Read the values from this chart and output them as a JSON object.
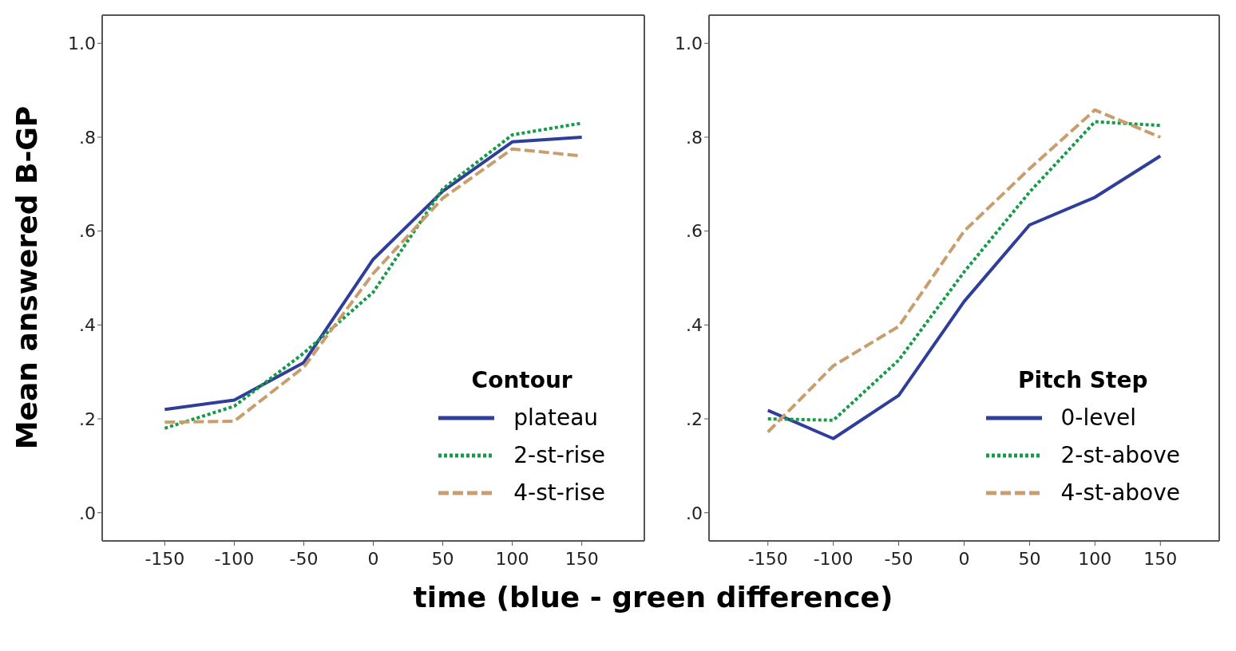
{
  "chart_data": [
    {
      "type": "line",
      "ylabel": "Mean answered B-GP",
      "xlabel": "time (blue - green difference)",
      "legend_title": "Contour",
      "legend": "bottom right",
      "x": [
        -150,
        -100,
        -50,
        0,
        50,
        100,
        150
      ],
      "series": [
        {
          "name": "plateau",
          "color": "#2e3e9a",
          "line_style": "solid",
          "values": [
            0.22,
            0.24,
            0.32,
            0.54,
            0.685,
            0.79,
            0.8
          ]
        },
        {
          "name": "2-st-rise",
          "color": "#169c48",
          "line_style": "dotted",
          "values": [
            0.18,
            0.227,
            0.34,
            0.47,
            0.69,
            0.805,
            0.83
          ]
        },
        {
          "name": "4-st-rise",
          "color": "#c89e6c",
          "line_style": "dashed",
          "values": [
            0.193,
            0.195,
            0.31,
            0.51,
            0.67,
            0.775,
            0.76
          ]
        }
      ],
      "xlim": [
        -195,
        195
      ],
      "xticks": [
        -150,
        -100,
        -50,
        0,
        50,
        100,
        150
      ],
      "ylim": [
        -0.06,
        1.06
      ],
      "yticks": [
        {
          "value": 0,
          "label": ".0"
        },
        {
          "value": 0.2,
          "label": ".2"
        },
        {
          "value": 0.4,
          "label": ".4"
        },
        {
          "value": 0.6,
          "label": ".6"
        },
        {
          "value": 0.8,
          "label": ".8"
        },
        {
          "value": 1,
          "label": "1.0"
        }
      ]
    },
    {
      "type": "line",
      "legend_title": "Pitch Step",
      "legend": "bottom right",
      "x": [
        -150,
        -100,
        -50,
        0,
        50,
        100,
        150
      ],
      "series": [
        {
          "name": "0-level",
          "color": "#2e3e9a",
          "line_style": "solid",
          "values": [
            0.218,
            0.158,
            0.25,
            0.45,
            0.613,
            0.672,
            0.76
          ]
        },
        {
          "name": "2-st-above",
          "color": "#169c48",
          "line_style": "dotted",
          "values": [
            0.2,
            0.197,
            0.325,
            0.513,
            0.683,
            0.833,
            0.825
          ]
        },
        {
          "name": "4-st-above",
          "color": "#c89e6c",
          "line_style": "dashed",
          "values": [
            0.172,
            0.313,
            0.397,
            0.6,
            0.733,
            0.858,
            0.8
          ]
        }
      ],
      "xlim": [
        -195,
        195
      ],
      "xticks": [
        -150,
        -100,
        -50,
        0,
        50,
        100,
        150
      ],
      "ylim": [
        -0.06,
        1.06
      ],
      "yticks": [
        {
          "value": 0,
          "label": ".0"
        },
        {
          "value": 0.2,
          "label": ".2"
        },
        {
          "value": 0.4,
          "label": ".4"
        },
        {
          "value": 0.6,
          "label": ".6"
        },
        {
          "value": 0.8,
          "label": ".8"
        },
        {
          "value": 1,
          "label": "1.0"
        }
      ]
    }
  ]
}
